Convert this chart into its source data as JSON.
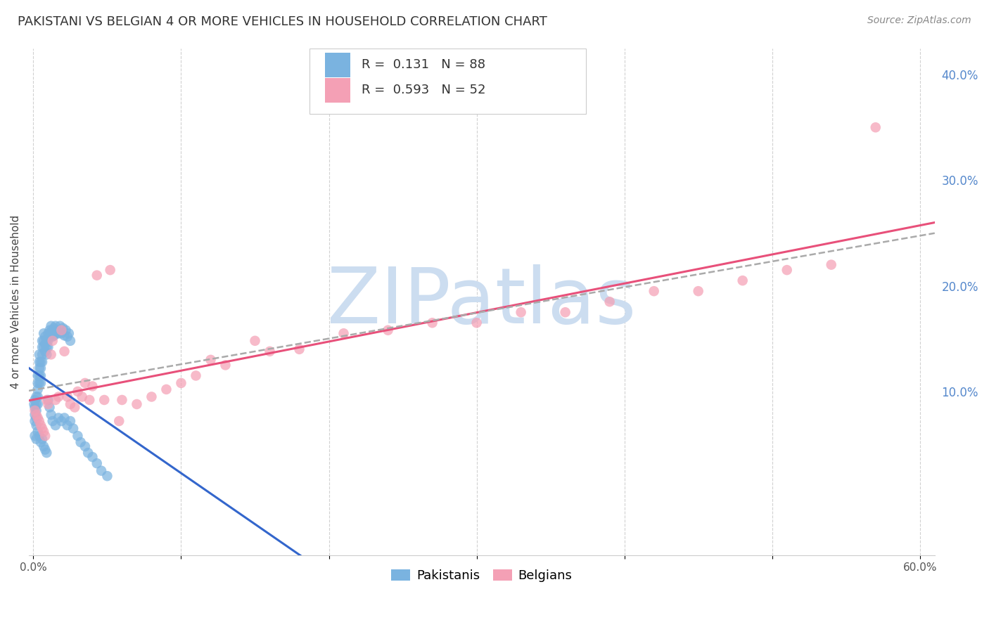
{
  "title": "PAKISTANI VS BELGIAN 4 OR MORE VEHICLES IN HOUSEHOLD CORRELATION CHART",
  "source": "Source: ZipAtlas.com",
  "ylabel": "4 or more Vehicles in Household",
  "xlim": [
    -0.003,
    0.61
  ],
  "ylim": [
    -0.055,
    0.425
  ],
  "xtick_positions": [
    0.0,
    0.1,
    0.2,
    0.3,
    0.4,
    0.5,
    0.6
  ],
  "xticklabels": [
    "0.0%",
    "",
    "",
    "",
    "",
    "",
    "60.0%"
  ],
  "yticks_right": [
    0.1,
    0.2,
    0.3,
    0.4
  ],
  "ytick_right_labels": [
    "10.0%",
    "20.0%",
    "30.0%",
    "40.0%"
  ],
  "r_pakistani": 0.131,
  "n_pakistani": 88,
  "r_belgian": 0.593,
  "n_belgian": 52,
  "pakistani_color": "#7ab3e0",
  "belgian_color": "#f4a0b5",
  "pakistani_line_color": "#3366cc",
  "belgian_line_color": "#e8507a",
  "combined_line_color": "#aaaaaa",
  "watermark_color": "#ccddf0",
  "background_color": "#ffffff",
  "grid_color": "#cccccc",
  "title_fontsize": 13,
  "source_fontsize": 10,
  "axis_label_fontsize": 11,
  "tick_fontsize": 11,
  "legend_fontsize": 13,
  "pakistani_x": [
    0.0005,
    0.001,
    0.001,
    0.001,
    0.001,
    0.002,
    0.002,
    0.002,
    0.002,
    0.002,
    0.003,
    0.003,
    0.003,
    0.003,
    0.003,
    0.004,
    0.004,
    0.004,
    0.004,
    0.004,
    0.005,
    0.005,
    0.005,
    0.005,
    0.006,
    0.006,
    0.006,
    0.006,
    0.007,
    0.007,
    0.007,
    0.008,
    0.008,
    0.008,
    0.009,
    0.009,
    0.009,
    0.01,
    0.01,
    0.01,
    0.011,
    0.011,
    0.012,
    0.012,
    0.013,
    0.013,
    0.014,
    0.014,
    0.015,
    0.015,
    0.016,
    0.017,
    0.018,
    0.019,
    0.02,
    0.021,
    0.022,
    0.023,
    0.024,
    0.025,
    0.001,
    0.002,
    0.003,
    0.004,
    0.005,
    0.006,
    0.007,
    0.008,
    0.009,
    0.01,
    0.011,
    0.012,
    0.013,
    0.015,
    0.017,
    0.019,
    0.021,
    0.023,
    0.025,
    0.027,
    0.03,
    0.032,
    0.035,
    0.037,
    0.04,
    0.043,
    0.046,
    0.05
  ],
  "pakistani_y": [
    0.088,
    0.092,
    0.085,
    0.078,
    0.072,
    0.095,
    0.088,
    0.082,
    0.075,
    0.068,
    0.115,
    0.108,
    0.102,
    0.095,
    0.088,
    0.135,
    0.128,
    0.122,
    0.115,
    0.108,
    0.128,
    0.122,
    0.115,
    0.108,
    0.148,
    0.142,
    0.135,
    0.128,
    0.155,
    0.148,
    0.142,
    0.152,
    0.145,
    0.138,
    0.148,
    0.142,
    0.135,
    0.155,
    0.148,
    0.142,
    0.158,
    0.152,
    0.162,
    0.155,
    0.158,
    0.152,
    0.16,
    0.153,
    0.162,
    0.155,
    0.158,
    0.155,
    0.162,
    0.155,
    0.16,
    0.153,
    0.158,
    0.152,
    0.155,
    0.148,
    0.058,
    0.055,
    0.062,
    0.058,
    0.052,
    0.055,
    0.048,
    0.045,
    0.042,
    0.092,
    0.085,
    0.078,
    0.072,
    0.068,
    0.075,
    0.072,
    0.075,
    0.068,
    0.072,
    0.065,
    0.058,
    0.052,
    0.048,
    0.042,
    0.038,
    0.032,
    0.025,
    0.02
  ],
  "belgian_x": [
    0.001,
    0.002,
    0.003,
    0.004,
    0.005,
    0.006,
    0.007,
    0.008,
    0.009,
    0.01,
    0.012,
    0.013,
    0.015,
    0.017,
    0.019,
    0.021,
    0.023,
    0.025,
    0.028,
    0.03,
    0.033,
    0.035,
    0.038,
    0.04,
    0.043,
    0.048,
    0.052,
    0.058,
    0.12,
    0.15,
    0.18,
    0.21,
    0.24,
    0.27,
    0.3,
    0.33,
    0.36,
    0.39,
    0.42,
    0.45,
    0.48,
    0.51,
    0.54,
    0.57,
    0.06,
    0.07,
    0.08,
    0.09,
    0.1,
    0.11,
    0.13,
    0.16
  ],
  "belgian_y": [
    0.082,
    0.078,
    0.075,
    0.072,
    0.068,
    0.065,
    0.062,
    0.058,
    0.092,
    0.088,
    0.135,
    0.148,
    0.092,
    0.095,
    0.158,
    0.138,
    0.095,
    0.088,
    0.085,
    0.1,
    0.095,
    0.108,
    0.092,
    0.105,
    0.21,
    0.092,
    0.215,
    0.072,
    0.13,
    0.148,
    0.14,
    0.155,
    0.158,
    0.165,
    0.165,
    0.175,
    0.175,
    0.185,
    0.195,
    0.195,
    0.205,
    0.215,
    0.22,
    0.35,
    0.092,
    0.088,
    0.095,
    0.102,
    0.108,
    0.115,
    0.125,
    0.138
  ]
}
